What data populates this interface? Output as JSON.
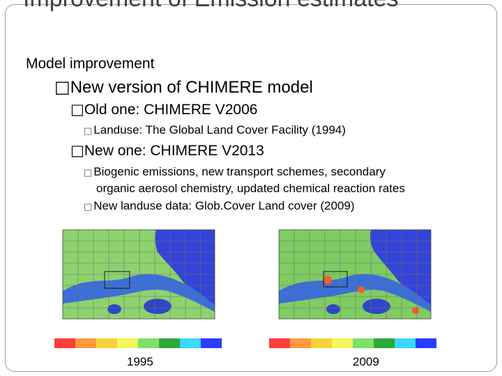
{
  "slide": {
    "title": "Improvement of Emission estimates",
    "subtitle": "Model improvement",
    "bullet_glyph": "□",
    "level1": "New version of CHIMERE model",
    "old_label": "Old one: CHIMERE V2006",
    "old_detail": "Landuse: The Global Land Cover Facility (1994)",
    "new_label": "New one: CHIMERE V2013",
    "new_detail1_line1": "Biogenic emissions, new transport schemes, secondary",
    "new_detail1_line2": "organic aerosol chemistry, updated chemical reaction rates",
    "new_detail2": "New landuse data: Glob.Cover Land cover (2009)"
  },
  "maps": [
    {
      "year": "1995",
      "legend_colors": [
        "#ff3d3d",
        "#ff9a3a",
        "#f7d23a",
        "#f3f55a",
        "#7ee06a",
        "#2ea83a",
        "#3ad8ff",
        "#2b3cff"
      ]
    },
    {
      "year": "2009",
      "legend_colors": [
        "#ff3d3d",
        "#ff9a3a",
        "#f7d23a",
        "#f3f55a",
        "#7ee06a",
        "#2ea83a",
        "#3ad8ff",
        "#2b3cff"
      ]
    }
  ]
}
